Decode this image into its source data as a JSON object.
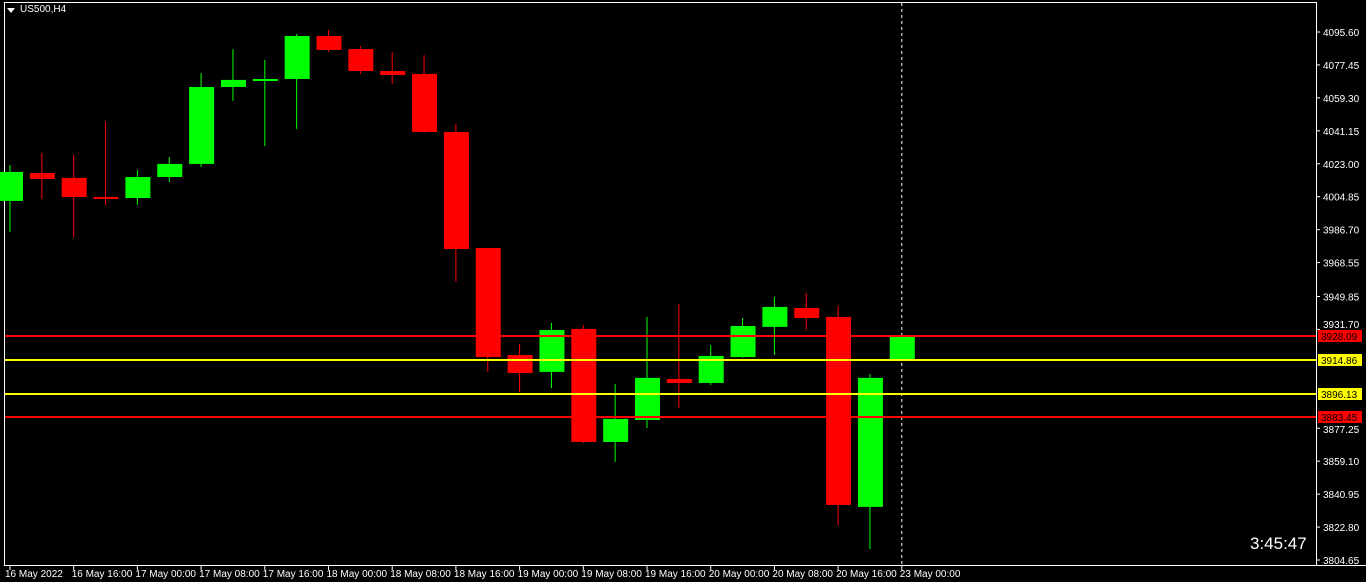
{
  "chart_data": {
    "type": "candlestick",
    "symbol_label": "US500,H4",
    "countdown": "3:45:47",
    "ylim": [
      3804.65,
      4095.6
    ],
    "y_ticks": [
      "4095.60",
      "4077.45",
      "4059.30",
      "4041.15",
      "4023.00",
      "4004.85",
      "3986.70",
      "3968.55",
      "3949.85",
      "3931.70",
      "3877.25",
      "3859.10",
      "3840.95",
      "3822.80",
      "3804.65"
    ],
    "x_ticks": [
      "16 May 2022",
      "16 May 16:00",
      "17 May 00:00",
      "17 May 08:00",
      "17 May 16:00",
      "18 May 00:00",
      "18 May 08:00",
      "18 May 16:00",
      "19 May 00:00",
      "19 May 08:00",
      "19 May 16:00",
      "20 May 00:00",
      "20 May 08:00",
      "20 May 16:00",
      "23 May 00:00"
    ],
    "candles": [
      [
        4002.5,
        4022.3,
        3985.4,
        4018.5
      ],
      [
        4017.9,
        4028.9,
        4003.6,
        4014.6
      ],
      [
        4015.2,
        4027.8,
        3982.6,
        4004.7
      ],
      [
        4004.7,
        4046.0,
        4000.3,
        4003.6
      ],
      [
        4004.1,
        4019.6,
        4000.3,
        4015.7
      ],
      [
        4015.7,
        4026.7,
        4012.9,
        4022.9
      ],
      [
        4022.9,
        4073.0,
        4021.2,
        4065.3
      ],
      [
        4065.3,
        4086.2,
        4057.6,
        4069.2
      ],
      [
        4068.6,
        4080.2,
        4032.8,
        4069.7
      ],
      [
        4069.7,
        4094.5,
        4042.2,
        4093.4
      ],
      [
        4093.4,
        4096.7,
        4084.6,
        4085.7
      ],
      [
        4086.2,
        4087.9,
        4072.5,
        4074.1
      ],
      [
        4074.1,
        4084.6,
        4066.9,
        4071.9
      ],
      [
        4072.5,
        4082.9,
        4040.0,
        4040.5
      ],
      [
        4040.5,
        4044.9,
        3957.9,
        3976.0
      ],
      [
        3976.6,
        3976.6,
        3908.3,
        3916.5
      ],
      [
        3917.6,
        3923.7,
        3897.2,
        3907.7
      ],
      [
        3908.3,
        3935.3,
        3899.4,
        3931.4
      ],
      [
        3932.0,
        3934.2,
        3869.1,
        3869.7
      ],
      [
        3869.7,
        3901.6,
        3858.7,
        3882.4
      ],
      [
        3881.8,
        3938.6,
        3877.4,
        3905.0
      ],
      [
        3904.4,
        3945.7,
        3888.4,
        3902.2
      ],
      [
        3902.2,
        3923.1,
        3901.1,
        3917.1
      ],
      [
        3916.5,
        3938.0,
        3916.0,
        3933.6
      ],
      [
        3933.1,
        3949.6,
        3917.6,
        3944.1
      ],
      [
        3943.5,
        3951.8,
        3931.4,
        3938.0
      ],
      [
        3938.6,
        3944.6,
        3824.0,
        3835.0
      ],
      [
        3833.9,
        3907.2,
        3810.7,
        3905.0
      ],
      [
        3915.4,
        3928.1,
        3914.9,
        3928.09
      ]
    ],
    "candle_fields": [
      "open",
      "high",
      "low",
      "close"
    ],
    "up_color": "#00ff00",
    "down_color": "#ff0000",
    "levels": [
      {
        "price": 3928.09,
        "label": "3928.09",
        "color": "#ff0000",
        "text_color": "#000000"
      },
      {
        "price": 3914.86,
        "label": "3914.86",
        "color": "#ffff00",
        "text_color": "#000000"
      },
      {
        "price": 3896.13,
        "label": "3896.13",
        "color": "#ffff00",
        "text_color": "#000000"
      },
      {
        "price": 3883.45,
        "label": "3883.45",
        "color": "#ff0000",
        "text_color": "#000000"
      }
    ],
    "period_separator": "23 May 00:00"
  }
}
